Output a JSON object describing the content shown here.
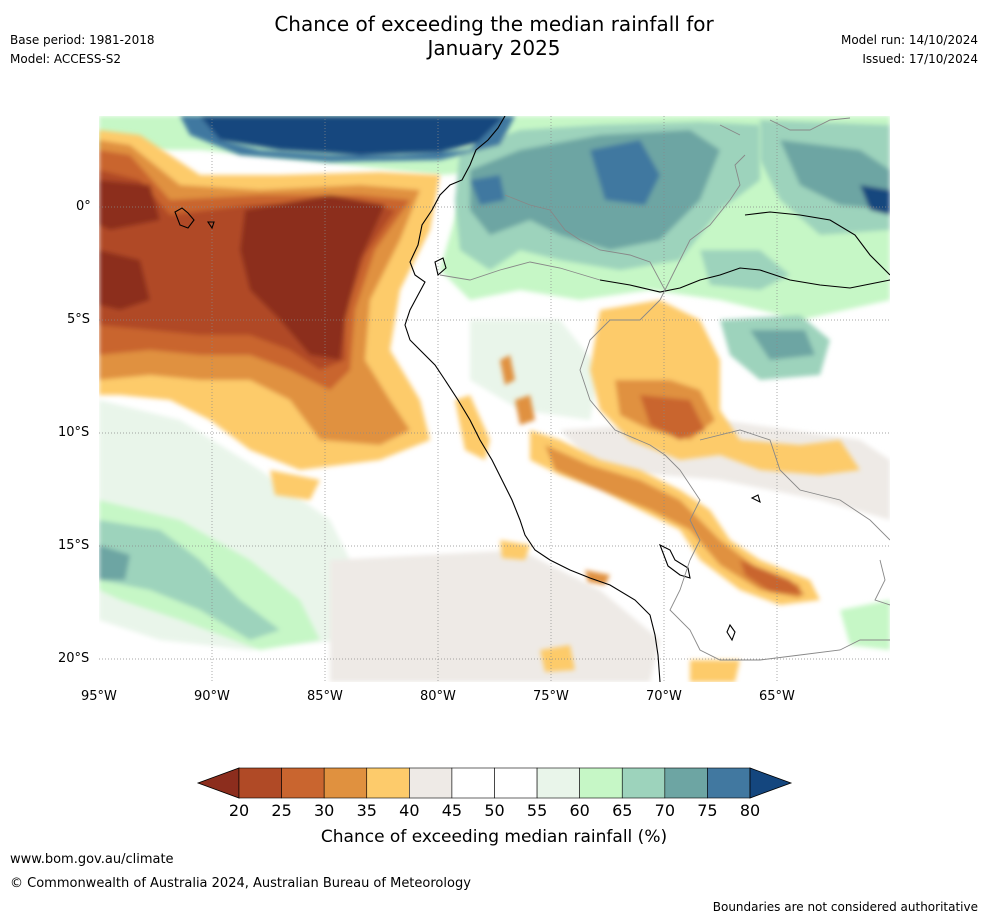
{
  "header": {
    "title_line1": "Chance of exceeding the median rainfall for",
    "title_line2": "January 2025",
    "base_period": "Base period: 1981-2018",
    "model": "Model: ACCESS-S2",
    "model_run": "Model run: 14/10/2024",
    "issued": "Issued: 17/10/2024"
  },
  "map": {
    "lat_labels": [
      "0°",
      "5°S",
      "10°S",
      "15°S",
      "20°S"
    ],
    "lon_labels": [
      "95°W",
      "90°W",
      "85°W",
      "80°W",
      "75°W",
      "70°W",
      "65°W"
    ]
  },
  "colorbar": {
    "ticks": [
      "20",
      "25",
      "30",
      "35",
      "40",
      "45",
      "50",
      "55",
      "60",
      "65",
      "70",
      "75",
      "80"
    ],
    "title": "Chance of exceeding median rainfall (%)",
    "colors": [
      "#8c2d1d",
      "#b04a26",
      "#c9652f",
      "#e0913f",
      "#fdcb6b",
      "#eeeae6",
      "#ffffff",
      "#ffffff",
      "#e9f5ea",
      "#c6f7c6",
      "#9dd3bc",
      "#6da5a3",
      "#4178a0",
      "#14467e"
    ]
  },
  "footer": {
    "website": "www.bom.gov.au/climate",
    "copyright": "© Commonwealth of Australia 2024, Australian Bureau of Meteorology",
    "disclaimer": "Boundaries are not considered authoritative"
  }
}
